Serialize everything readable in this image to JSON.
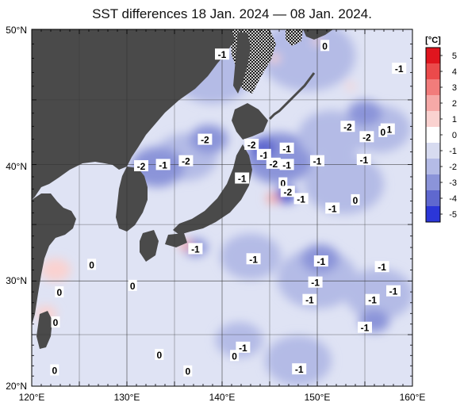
{
  "title": "SST differences 18 Jan. 2024 — 08 Jan. 2024.",
  "map": {
    "lat_labels": [
      "50°N",
      "40°N",
      "30°N",
      "20°N"
    ],
    "lon_labels": [
      "120°E",
      "130°E",
      "140°E",
      "150°E",
      "160°E"
    ],
    "contour_labels": [
      {
        "text": "-1",
        "lon": 140.0,
        "lat": 48.3
      },
      {
        "text": "0",
        "lon": 150.8,
        "lat": 48.9
      },
      {
        "text": "-1",
        "lon": 158.6,
        "lat": 47.3
      },
      {
        "text": "-2",
        "lon": 138.2,
        "lat": 42.0
      },
      {
        "text": "-2",
        "lon": 143.1,
        "lat": 41.6
      },
      {
        "text": "-1",
        "lon": 146.8,
        "lat": 41.3
      },
      {
        "text": "-2",
        "lon": 153.2,
        "lat": 43.0
      },
      {
        "text": "-1",
        "lon": 157.4,
        "lat": 42.8
      },
      {
        "text": "-2",
        "lon": 155.2,
        "lat": 42.2
      },
      {
        "text": "0",
        "lon": 156.9,
        "lat": 42.6
      },
      {
        "text": "-2",
        "lon": 131.5,
        "lat": 39.9
      },
      {
        "text": "-1",
        "lon": 133.8,
        "lat": 40.0
      },
      {
        "text": "-2",
        "lon": 136.2,
        "lat": 40.3
      },
      {
        "text": "-1",
        "lon": 144.4,
        "lat": 40.8
      },
      {
        "text": "-2",
        "lon": 145.4,
        "lat": 40.1
      },
      {
        "text": "-1",
        "lon": 146.8,
        "lat": 40.0
      },
      {
        "text": "-1",
        "lon": 150.0,
        "lat": 40.3
      },
      {
        "text": "-1",
        "lon": 154.9,
        "lat": 40.4
      },
      {
        "text": "-1",
        "lon": 142.1,
        "lat": 38.9
      },
      {
        "text": "0",
        "lon": 146.4,
        "lat": 38.5
      },
      {
        "text": "-2",
        "lon": 146.9,
        "lat": 37.8
      },
      {
        "text": "-1",
        "lon": 148.3,
        "lat": 37.2
      },
      {
        "text": "0",
        "lon": 154.0,
        "lat": 37.1
      },
      {
        "text": "-1",
        "lon": 151.6,
        "lat": 36.4
      },
      {
        "text": "-1",
        "lon": 137.2,
        "lat": 32.9
      },
      {
        "text": "-1",
        "lon": 143.3,
        "lat": 32.0
      },
      {
        "text": "-1",
        "lon": 150.4,
        "lat": 31.8
      },
      {
        "text": "-1",
        "lon": 156.8,
        "lat": 31.3
      },
      {
        "text": "0",
        "lon": 126.3,
        "lat": 31.5
      },
      {
        "text": "-1",
        "lon": 149.8,
        "lat": 29.9
      },
      {
        "text": "0",
        "lon": 130.6,
        "lat": 29.6
      },
      {
        "text": "-1",
        "lon": 158.0,
        "lat": 29.1
      },
      {
        "text": "0",
        "lon": 122.9,
        "lat": 29.0
      },
      {
        "text": "-1",
        "lon": 149.2,
        "lat": 28.3
      },
      {
        "text": "-1",
        "lon": 155.8,
        "lat": 28.3
      },
      {
        "text": "0",
        "lon": 122.5,
        "lat": 26.2
      },
      {
        "text": "-1",
        "lon": 155.0,
        "lat": 25.7
      },
      {
        "text": "-1",
        "lon": 142.2,
        "lat": 23.8
      },
      {
        "text": "0",
        "lon": 133.4,
        "lat": 23.1
      },
      {
        "text": "0",
        "lon": 141.3,
        "lat": 23.0
      },
      {
        "text": "0",
        "lon": 122.4,
        "lat": 21.6
      },
      {
        "text": "0",
        "lon": 136.4,
        "lat": 21.5
      },
      {
        "text": "-1",
        "lon": 148.1,
        "lat": 21.7
      }
    ],
    "anomaly_patches": [
      {
        "lon": 149.0,
        "lat": 48.2,
        "r": 5.0,
        "level": -1
      },
      {
        "lon": 139.0,
        "lat": 46.8,
        "r": 4.0,
        "level": -1
      },
      {
        "lon": 136.2,
        "lat": 40.6,
        "r": 3.3,
        "level": -1
      },
      {
        "lon": 133.2,
        "lat": 39.8,
        "r": 2.8,
        "level": -2
      },
      {
        "lon": 138.6,
        "lat": 42.0,
        "r": 2.0,
        "level": -2
      },
      {
        "lon": 146.0,
        "lat": 40.5,
        "r": 3.6,
        "level": -2
      },
      {
        "lon": 144.3,
        "lat": 41.3,
        "r": 1.4,
        "level": -3
      },
      {
        "lon": 146.7,
        "lat": 37.5,
        "r": 1.2,
        "level": -3
      },
      {
        "lon": 151.5,
        "lat": 42.3,
        "r": 3.5,
        "level": -1
      },
      {
        "lon": 156.5,
        "lat": 42.8,
        "r": 3.3,
        "level": -1
      },
      {
        "lon": 152.8,
        "lat": 38.4,
        "r": 4.2,
        "level": -1
      },
      {
        "lon": 143.0,
        "lat": 32.2,
        "r": 3.2,
        "level": -1
      },
      {
        "lon": 150.0,
        "lat": 30.2,
        "r": 4.2,
        "level": -1
      },
      {
        "lon": 156.5,
        "lat": 28.8,
        "r": 3.6,
        "level": -1
      },
      {
        "lon": 148.0,
        "lat": 22.5,
        "r": 3.5,
        "level": -1
      },
      {
        "lon": 141.8,
        "lat": 24.5,
        "r": 2.5,
        "level": -1
      },
      {
        "lon": 137.2,
        "lat": 33.0,
        "r": 1.3,
        "level": -2
      },
      {
        "lon": 150.3,
        "lat": 32.0,
        "r": 2.0,
        "level": -2
      },
      {
        "lon": 156.0,
        "lat": 26.3,
        "r": 1.6,
        "level": -2
      },
      {
        "lon": 155.0,
        "lat": 44.0,
        "r": 1.8,
        "level": -2
      }
    ],
    "warm_patches": [
      {
        "lon": 122.5,
        "lat": 31.0,
        "r": 1.6,
        "level": 1
      },
      {
        "lon": 121.5,
        "lat": 27.0,
        "r": 1.1,
        "level": 1
      },
      {
        "lon": 136.2,
        "lat": 33.2,
        "r": 0.7,
        "level": 2
      },
      {
        "lon": 145.3,
        "lat": 37.2,
        "r": 0.7,
        "level": 2
      },
      {
        "lon": 145.5,
        "lat": 48.0,
        "r": 0.6,
        "level": 1
      },
      {
        "lon": 150.0,
        "lat": 49.2,
        "r": 0.5,
        "level": 1
      },
      {
        "lon": 153.5,
        "lat": 46.0,
        "r": 0.5,
        "level": 1
      }
    ]
  },
  "colorbar": {
    "unit": "[°C]",
    "ticks": [
      "5",
      "4",
      "3",
      "2",
      "1",
      "0",
      "-1",
      "-2",
      "-3",
      "-4",
      "-5"
    ],
    "colors": {
      "p5": "#e0151e",
      "p4": "#eb4a4b",
      "p3": "#f27c7b",
      "p2": "#f6a9a7",
      "p1": "#fad2d0",
      "zero": "#ffffff",
      "n1": "#d7dbf0",
      "n2": "#b4bbe6",
      "n3": "#8b94d9",
      "n4": "#5f68cf",
      "n5": "#2b36d8"
    }
  },
  "colors": {
    "land": "#4a4a4a",
    "ocean_base": "#dfe3f4",
    "ice_hatch": "#000000",
    "grid": "#333333"
  }
}
